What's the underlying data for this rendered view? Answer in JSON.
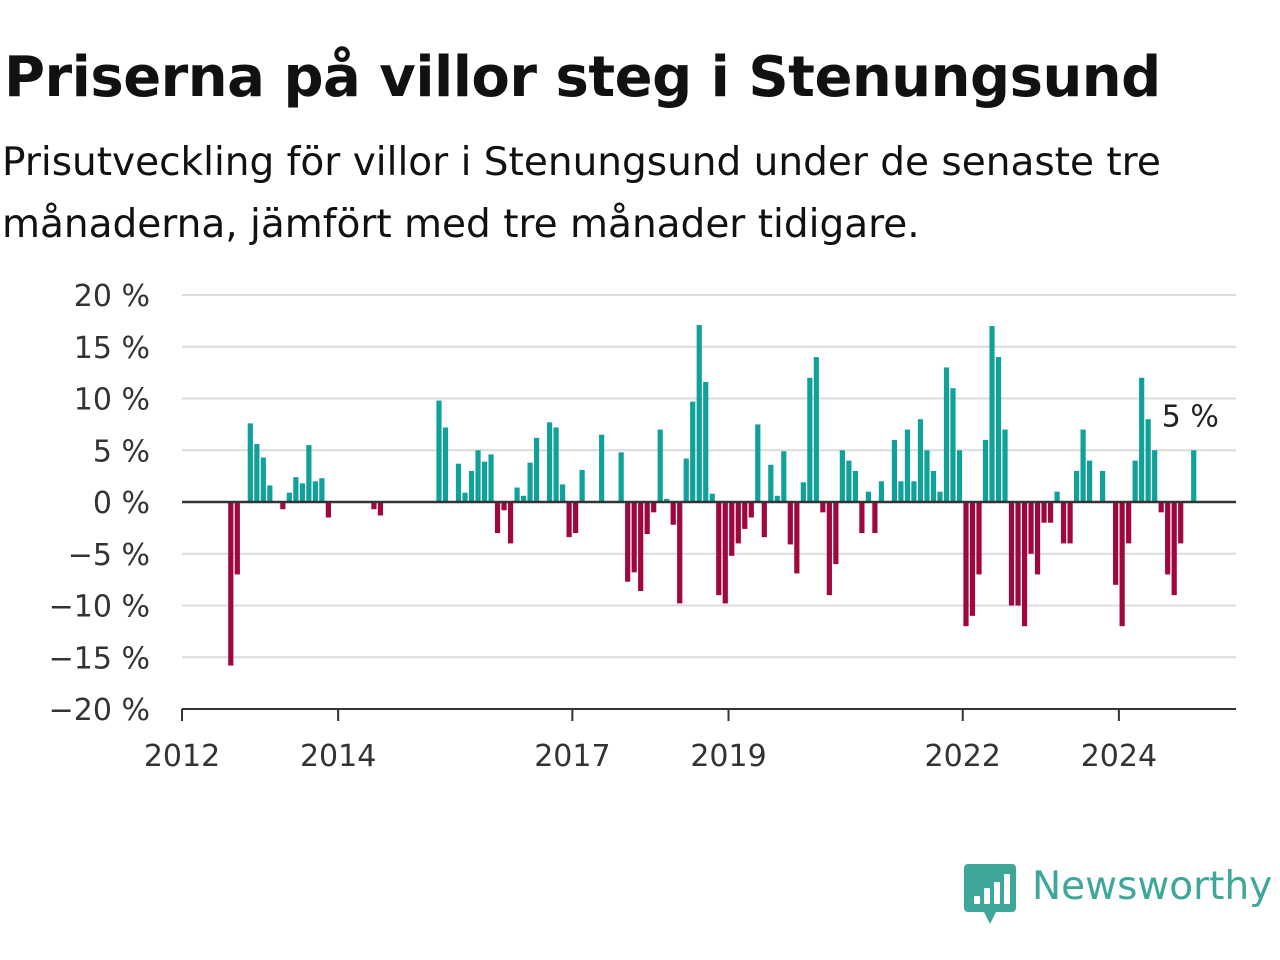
{
  "title": "Priserna på villor steg i Stenungsund",
  "subtitle": "Prisutveckling för villor i Stenungsund under de senaste tre månaderna, jämfört med tre månader tidigare.",
  "brand": {
    "name": "Newsworthy",
    "icon": "newsworthy-logo-icon",
    "color": "#3ea79a"
  },
  "chart_data": {
    "type": "bar",
    "x_start": "2012-01",
    "x_end": "2025-07",
    "x_ticks": [
      {
        "date": "2012-01",
        "label": "2012"
      },
      {
        "date": "2014-01",
        "label": "2014"
      },
      {
        "date": "2017-01",
        "label": "2017"
      },
      {
        "date": "2019-01",
        "label": "2019"
      },
      {
        "date": "2022-01",
        "label": "2022"
      },
      {
        "date": "2024-01",
        "label": "2024"
      }
    ],
    "y_ticks": [
      {
        "value": 20,
        "label": "20 %"
      },
      {
        "value": 15,
        "label": "15 %"
      },
      {
        "value": 10,
        "label": "10 %"
      },
      {
        "value": 5,
        "label": "5 %"
      },
      {
        "value": 0,
        "label": "0 %"
      },
      {
        "value": -5,
        "label": "−5 %"
      },
      {
        "value": -10,
        "label": "−10 %"
      },
      {
        "value": -15,
        "label": "−15 %"
      },
      {
        "value": -20,
        "label": "−20 %"
      }
    ],
    "ylim": [
      -20,
      20
    ],
    "grid": true,
    "positive_color": "#11a19b",
    "negative_color": "#a0063f",
    "last_value_label": "5 %",
    "points": [
      {
        "x": "2012-08",
        "y": -15.8
      },
      {
        "x": "2012-09",
        "y": -7.0
      },
      {
        "x": "2012-10",
        "y": 0
      },
      {
        "x": "2012-11",
        "y": 7.6
      },
      {
        "x": "2012-12",
        "y": 5.6
      },
      {
        "x": "2013-01",
        "y": 4.3
      },
      {
        "x": "2013-02",
        "y": 1.6
      },
      {
        "x": "2013-03",
        "y": 0
      },
      {
        "x": "2013-04",
        "y": -0.7
      },
      {
        "x": "2013-05",
        "y": 0.9
      },
      {
        "x": "2013-06",
        "y": 2.4
      },
      {
        "x": "2013-07",
        "y": 1.8
      },
      {
        "x": "2013-08",
        "y": 5.5
      },
      {
        "x": "2013-09",
        "y": 2.0
      },
      {
        "x": "2013-10",
        "y": 2.3
      },
      {
        "x": "2013-11",
        "y": -1.5
      },
      {
        "x": "2013-12",
        "y": 0
      },
      {
        "x": "2014-01",
        "y": 0
      },
      {
        "x": "2014-02",
        "y": 0
      },
      {
        "x": "2014-03",
        "y": 0
      },
      {
        "x": "2014-04",
        "y": 0
      },
      {
        "x": "2014-05",
        "y": 0
      },
      {
        "x": "2014-06",
        "y": -0.7
      },
      {
        "x": "2014-07",
        "y": -1.3
      },
      {
        "x": "2014-08",
        "y": 0
      },
      {
        "x": "2014-09",
        "y": 0
      },
      {
        "x": "2014-10",
        "y": 0
      },
      {
        "x": "2014-11",
        "y": 0
      },
      {
        "x": "2014-12",
        "y": 0
      },
      {
        "x": "2015-01",
        "y": 0
      },
      {
        "x": "2015-02",
        "y": 0
      },
      {
        "x": "2015-03",
        "y": 0
      },
      {
        "x": "2015-04",
        "y": 9.8
      },
      {
        "x": "2015-05",
        "y": 7.2
      },
      {
        "x": "2015-06",
        "y": 0
      },
      {
        "x": "2015-07",
        "y": 3.7
      },
      {
        "x": "2015-08",
        "y": 0.9
      },
      {
        "x": "2015-09",
        "y": 3.0
      },
      {
        "x": "2015-10",
        "y": 5.0
      },
      {
        "x": "2015-11",
        "y": 3.9
      },
      {
        "x": "2015-12",
        "y": 4.6
      },
      {
        "x": "2016-01",
        "y": -3.0
      },
      {
        "x": "2016-02",
        "y": -0.8
      },
      {
        "x": "2016-03",
        "y": -4.0
      },
      {
        "x": "2016-04",
        "y": 1.4
      },
      {
        "x": "2016-05",
        "y": 0.6
      },
      {
        "x": "2016-06",
        "y": 3.8
      },
      {
        "x": "2016-07",
        "y": 6.2
      },
      {
        "x": "2016-08",
        "y": 0
      },
      {
        "x": "2016-09",
        "y": 7.7
      },
      {
        "x": "2016-10",
        "y": 7.2
      },
      {
        "x": "2016-11",
        "y": 1.7
      },
      {
        "x": "2016-12",
        "y": -3.4
      },
      {
        "x": "2017-01",
        "y": -3.0
      },
      {
        "x": "2017-02",
        "y": 3.1
      },
      {
        "x": "2017-03",
        "y": 0
      },
      {
        "x": "2017-04",
        "y": 0
      },
      {
        "x": "2017-05",
        "y": 6.5
      },
      {
        "x": "2017-06",
        "y": 0
      },
      {
        "x": "2017-07",
        "y": 0
      },
      {
        "x": "2017-08",
        "y": 4.8
      },
      {
        "x": "2017-09",
        "y": -7.7
      },
      {
        "x": "2017-10",
        "y": -6.8
      },
      {
        "x": "2017-11",
        "y": -8.6
      },
      {
        "x": "2017-12",
        "y": -3.1
      },
      {
        "x": "2018-01",
        "y": -1.0
      },
      {
        "x": "2018-02",
        "y": 7.0
      },
      {
        "x": "2018-03",
        "y": 0.3
      },
      {
        "x": "2018-04",
        "y": -2.2
      },
      {
        "x": "2018-05",
        "y": -9.8
      },
      {
        "x": "2018-06",
        "y": 4.2
      },
      {
        "x": "2018-07",
        "y": 9.7
      },
      {
        "x": "2018-08",
        "y": 17.1
      },
      {
        "x": "2018-09",
        "y": 11.6
      },
      {
        "x": "2018-10",
        "y": 0.8
      },
      {
        "x": "2018-11",
        "y": -9.0
      },
      {
        "x": "2018-12",
        "y": -9.8
      },
      {
        "x": "2019-01",
        "y": -5.2
      },
      {
        "x": "2019-02",
        "y": -4.0
      },
      {
        "x": "2019-03",
        "y": -2.6
      },
      {
        "x": "2019-04",
        "y": -1.5
      },
      {
        "x": "2019-05",
        "y": 7.5
      },
      {
        "x": "2019-06",
        "y": -3.4
      },
      {
        "x": "2019-07",
        "y": 3.6
      },
      {
        "x": "2019-08",
        "y": 0.6
      },
      {
        "x": "2019-09",
        "y": 4.9
      },
      {
        "x": "2019-10",
        "y": -4.1
      },
      {
        "x": "2019-11",
        "y": -6.9
      },
      {
        "x": "2019-12",
        "y": 1.9
      },
      {
        "x": "2020-01",
        "y": 12.0
      },
      {
        "x": "2020-02",
        "y": 14.0
      },
      {
        "x": "2020-03",
        "y": -1.0
      },
      {
        "x": "2020-04",
        "y": -9.0
      },
      {
        "x": "2020-05",
        "y": -6.0
      },
      {
        "x": "2020-06",
        "y": 5.0
      },
      {
        "x": "2020-07",
        "y": 4.0
      },
      {
        "x": "2020-08",
        "y": 3.0
      },
      {
        "x": "2020-09",
        "y": -3.0
      },
      {
        "x": "2020-10",
        "y": 1.0
      },
      {
        "x": "2020-11",
        "y": -3.0
      },
      {
        "x": "2020-12",
        "y": 2.0
      },
      {
        "x": "2021-01",
        "y": 0
      },
      {
        "x": "2021-02",
        "y": 6.0
      },
      {
        "x": "2021-03",
        "y": 2.0
      },
      {
        "x": "2021-04",
        "y": 7.0
      },
      {
        "x": "2021-05",
        "y": 2.0
      },
      {
        "x": "2021-06",
        "y": 8.0
      },
      {
        "x": "2021-07",
        "y": 5.0
      },
      {
        "x": "2021-08",
        "y": 3.0
      },
      {
        "x": "2021-09",
        "y": 1.0
      },
      {
        "x": "2021-10",
        "y": 13.0
      },
      {
        "x": "2021-11",
        "y": 11.0
      },
      {
        "x": "2021-12",
        "y": 5.0
      },
      {
        "x": "2022-01",
        "y": -12.0
      },
      {
        "x": "2022-02",
        "y": -11.0
      },
      {
        "x": "2022-03",
        "y": -7.0
      },
      {
        "x": "2022-04",
        "y": 6.0
      },
      {
        "x": "2022-05",
        "y": 17.0
      },
      {
        "x": "2022-06",
        "y": 14.0
      },
      {
        "x": "2022-07",
        "y": 7.0
      },
      {
        "x": "2022-08",
        "y": -10.0
      },
      {
        "x": "2022-09",
        "y": -10.0
      },
      {
        "x": "2022-10",
        "y": -12.0
      },
      {
        "x": "2022-11",
        "y": -5.0
      },
      {
        "x": "2022-12",
        "y": -7.0
      },
      {
        "x": "2023-01",
        "y": -2.0
      },
      {
        "x": "2023-02",
        "y": -2.0
      },
      {
        "x": "2023-03",
        "y": 1.0
      },
      {
        "x": "2023-04",
        "y": -4.0
      },
      {
        "x": "2023-05",
        "y": -4.0
      },
      {
        "x": "2023-06",
        "y": 3.0
      },
      {
        "x": "2023-07",
        "y": 7.0
      },
      {
        "x": "2023-08",
        "y": 4.0
      },
      {
        "x": "2023-09",
        "y": 0
      },
      {
        "x": "2023-10",
        "y": 3.0
      },
      {
        "x": "2023-11",
        "y": 0
      },
      {
        "x": "2023-12",
        "y": -8.0
      },
      {
        "x": "2024-01",
        "y": -12.0
      },
      {
        "x": "2024-02",
        "y": -4.0
      },
      {
        "x": "2024-03",
        "y": 4.0
      },
      {
        "x": "2024-04",
        "y": 12.0
      },
      {
        "x": "2024-05",
        "y": 8.0
      },
      {
        "x": "2024-06",
        "y": 5.0
      },
      {
        "x": "2024-07",
        "y": -1.0
      },
      {
        "x": "2024-08",
        "y": -7.0
      },
      {
        "x": "2024-09",
        "y": -9.0
      },
      {
        "x": "2024-10",
        "y": -4.0
      },
      {
        "x": "2024-11",
        "y": 0
      },
      {
        "x": "2024-12",
        "y": 5.0
      }
    ]
  }
}
